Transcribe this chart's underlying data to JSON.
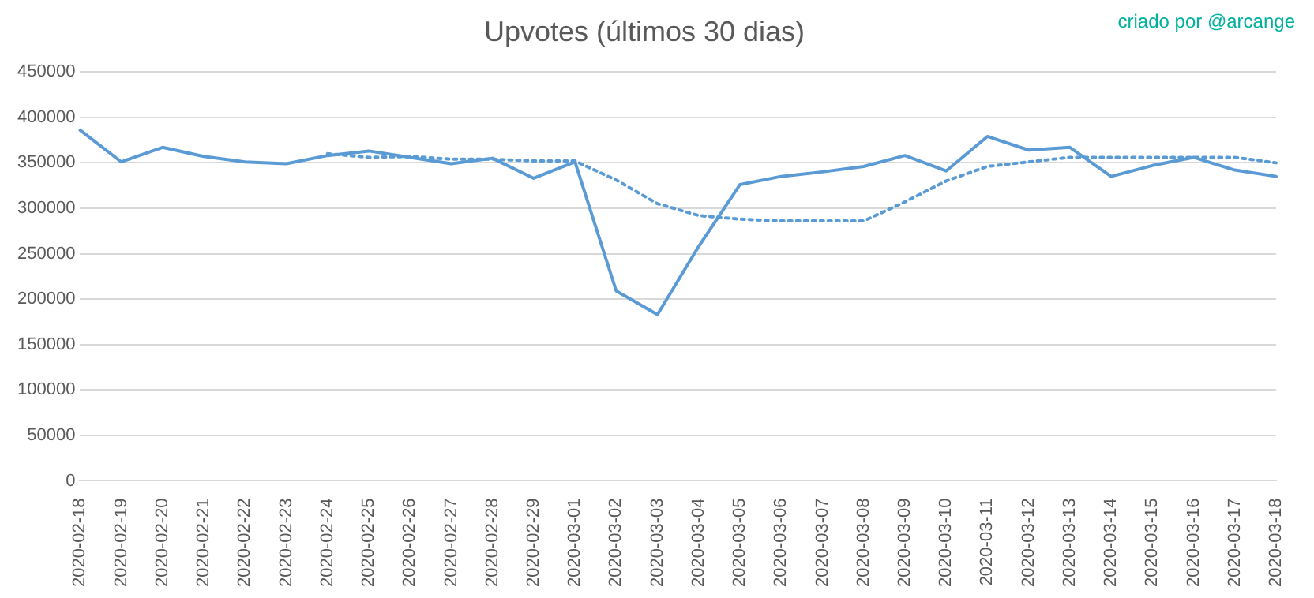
{
  "chart_data": {
    "type": "line",
    "title": "Upvotes (últimos 30 dias)",
    "annotations": [
      "criado por @arcange"
    ],
    "categories": [
      "2020-02-18",
      "2020-02-19",
      "2020-02-20",
      "2020-02-21",
      "2020-02-22",
      "2020-02-23",
      "2020-02-24",
      "2020-02-25",
      "2020-02-26",
      "2020-02-27",
      "2020-02-28",
      "2020-02-29",
      "2020-03-01",
      "2020-03-02",
      "2020-03-03",
      "2020-03-04",
      "2020-03-05",
      "2020-03-06",
      "2020-03-07",
      "2020-03-08",
      "2020-03-09",
      "2020-03-10",
      "2020-03-11",
      "2020-03-12",
      "2020-03-13",
      "2020-03-14",
      "2020-03-15",
      "2020-03-16",
      "2020-03-17",
      "2020-03-18"
    ],
    "series": [
      {
        "color": "#5b9bd5",
        "line_style": "solid",
        "values": [
          386000,
          351000,
          367000,
          357000,
          351000,
          349000,
          358000,
          363000,
          356000,
          349000,
          355000,
          333000,
          351000,
          209000,
          183000,
          258000,
          326000,
          335000,
          340000,
          346000,
          358000,
          341000,
          379000,
          364000,
          367000,
          335000,
          347000,
          356000,
          342000,
          335000
        ]
      },
      {
        "color": "#5b9bd5",
        "line_style": "dotted",
        "values": [
          null,
          null,
          null,
          null,
          null,
          null,
          360000,
          356000,
          357000,
          354000,
          354000,
          352000,
          352000,
          331000,
          305000,
          292000,
          288000,
          286000,
          286000,
          286000,
          307000,
          330000,
          346000,
          351000,
          356000,
          356000,
          356000,
          356000,
          356000,
          350000
        ]
      }
    ],
    "ylim": [
      0,
      450000
    ],
    "yticks": [
      0,
      50000,
      100000,
      150000,
      200000,
      250000,
      300000,
      350000,
      400000,
      450000
    ],
    "grid": "y",
    "legend": false,
    "marker": "none"
  }
}
